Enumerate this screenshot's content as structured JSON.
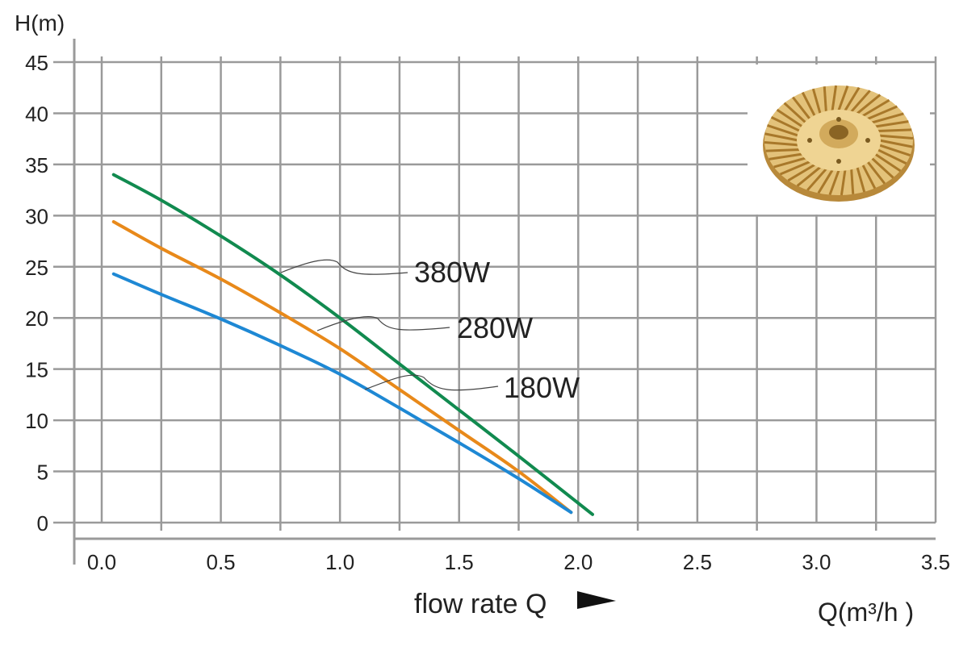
{
  "chart_data": {
    "type": "line",
    "ylabel": "H(m)",
    "xlabel": "Q(m³/h )",
    "flow_label": "flow rate Q",
    "xlim": [
      0,
      3.5
    ],
    "ylim": [
      0,
      45
    ],
    "x_ticks": [
      "0.0",
      "0.5",
      "1.0",
      "1.5",
      "2.0",
      "2.5",
      "3.0",
      "3.5"
    ],
    "y_ticks": [
      "0",
      "5",
      "10",
      "15",
      "20",
      "25",
      "30",
      "35",
      "40",
      "45"
    ],
    "grid": true,
    "series": [
      {
        "name": "380W",
        "color": "#118a4f",
        "x": [
          0.05,
          0.25,
          0.5,
          0.75,
          1.0,
          1.25,
          1.5,
          1.75,
          2.06
        ],
        "y": [
          34.0,
          31.5,
          28.0,
          24.2,
          20.0,
          15.5,
          11.0,
          6.5,
          0.8
        ]
      },
      {
        "name": "280W",
        "color": "#e8891a",
        "x": [
          0.05,
          0.25,
          0.5,
          0.75,
          1.0,
          1.25,
          1.5,
          1.75,
          1.97
        ],
        "y": [
          29.4,
          26.8,
          23.8,
          20.5,
          17.0,
          13.0,
          9.0,
          5.0,
          1.0
        ]
      },
      {
        "name": "180W",
        "color": "#1e88d4",
        "x": [
          0.05,
          0.25,
          0.5,
          0.75,
          1.0,
          1.25,
          1.5,
          1.75,
          1.97
        ],
        "y": [
          24.3,
          22.3,
          19.9,
          17.3,
          14.5,
          11.2,
          7.8,
          4.3,
          1.0
        ]
      }
    ]
  }
}
